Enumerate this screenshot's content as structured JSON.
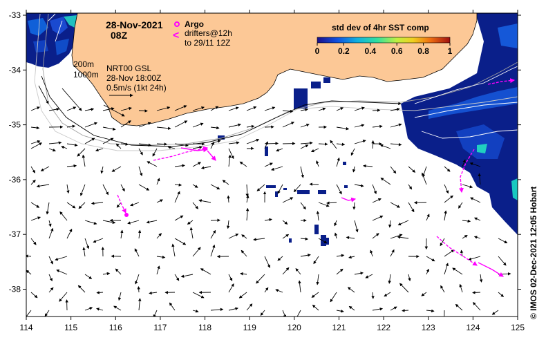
{
  "header": {
    "date": "28-Nov-2021",
    "time": "08Z"
  },
  "legend": {
    "argo_label": "Argo",
    "drifters_line1": "drifters@12h",
    "drifters_line2": "to 29/11 12Z",
    "argo_color": "#ff00ff",
    "drifter_color": "#ff00ff"
  },
  "colorbar": {
    "title": "std dev of 4hr SST comp",
    "ticks": [
      "0",
      "0.2",
      "0.4",
      "0.6",
      "0.8",
      "1"
    ]
  },
  "annotations": {
    "contour_200": "200m",
    "contour_1000": "1000m",
    "model": "NRT00 GSL",
    "valid_time": "28-Nov 18:00Z",
    "scale": "0.5m/s (1kt 24h)"
  },
  "axes": {
    "x_ticks": [
      "114",
      "115",
      "116",
      "117",
      "118",
      "119",
      "120",
      "121",
      "122",
      "123",
      "124",
      "125"
    ],
    "y_ticks": [
      "-33",
      "-34",
      "-35",
      "-36",
      "-37",
      "-38"
    ]
  },
  "credit": "© IMOS 02-Dec-2021 12:05 Hobart",
  "colors": {
    "land": "#fcc896",
    "ocean": "#ffffff",
    "sst_low": "#0a1f8a",
    "sst_mid": "#1a6ae0",
    "sst_hi": "#20d0c0",
    "drifter": "#ff00ff"
  }
}
